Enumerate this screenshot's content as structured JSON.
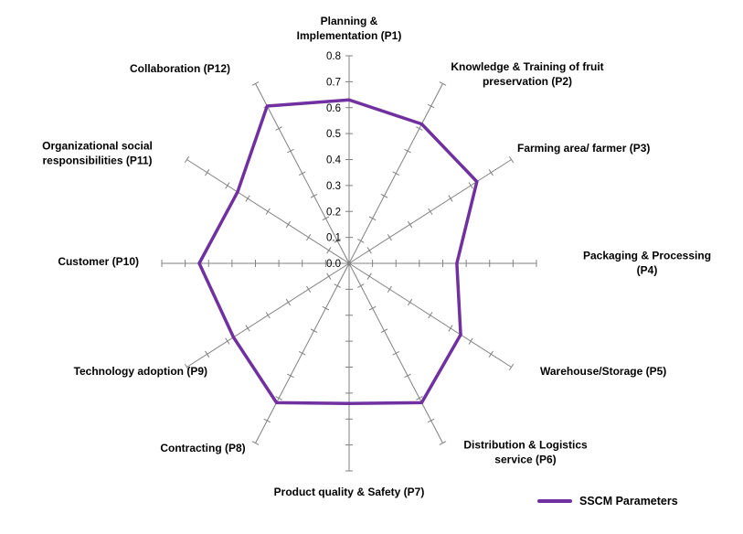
{
  "chart_data": {
    "type": "radar",
    "title": "",
    "categories": [
      "Planning & Implementation (P1)",
      "Knowledge & Training of fruit preservation (P2)",
      "Farming area/ farmer (P3)",
      "Packaging & Processing (P4)",
      "Warehouse/Storage (P5)",
      "Distribution & Logistics service (P6)",
      "Product quality & Safety (P7)",
      "Contracting (P8)",
      "Technology adoption (P9)",
      "Customer (P10)",
      "Organizational social responsibilities (P11)",
      "Collaboration (P12)"
    ],
    "series": [
      {
        "name": "SSCM Parameters",
        "color": "#7030A0",
        "values": [
          0.63,
          0.62,
          0.63,
          0.46,
          0.55,
          0.62,
          0.54,
          0.62,
          0.57,
          0.64,
          0.55,
          0.7
        ]
      }
    ],
    "axis": {
      "min": 0,
      "max": 0.8,
      "tick_step": 0.1,
      "tick_labels": [
        "0.0",
        "0.1",
        "0.2",
        "0.3",
        "0.4",
        "0.5",
        "0.6",
        "0.7",
        "0.8"
      ]
    },
    "grid": "spokes-with-tick-marks",
    "spoke_color": "#808080",
    "legend_position": "bottom-right"
  }
}
